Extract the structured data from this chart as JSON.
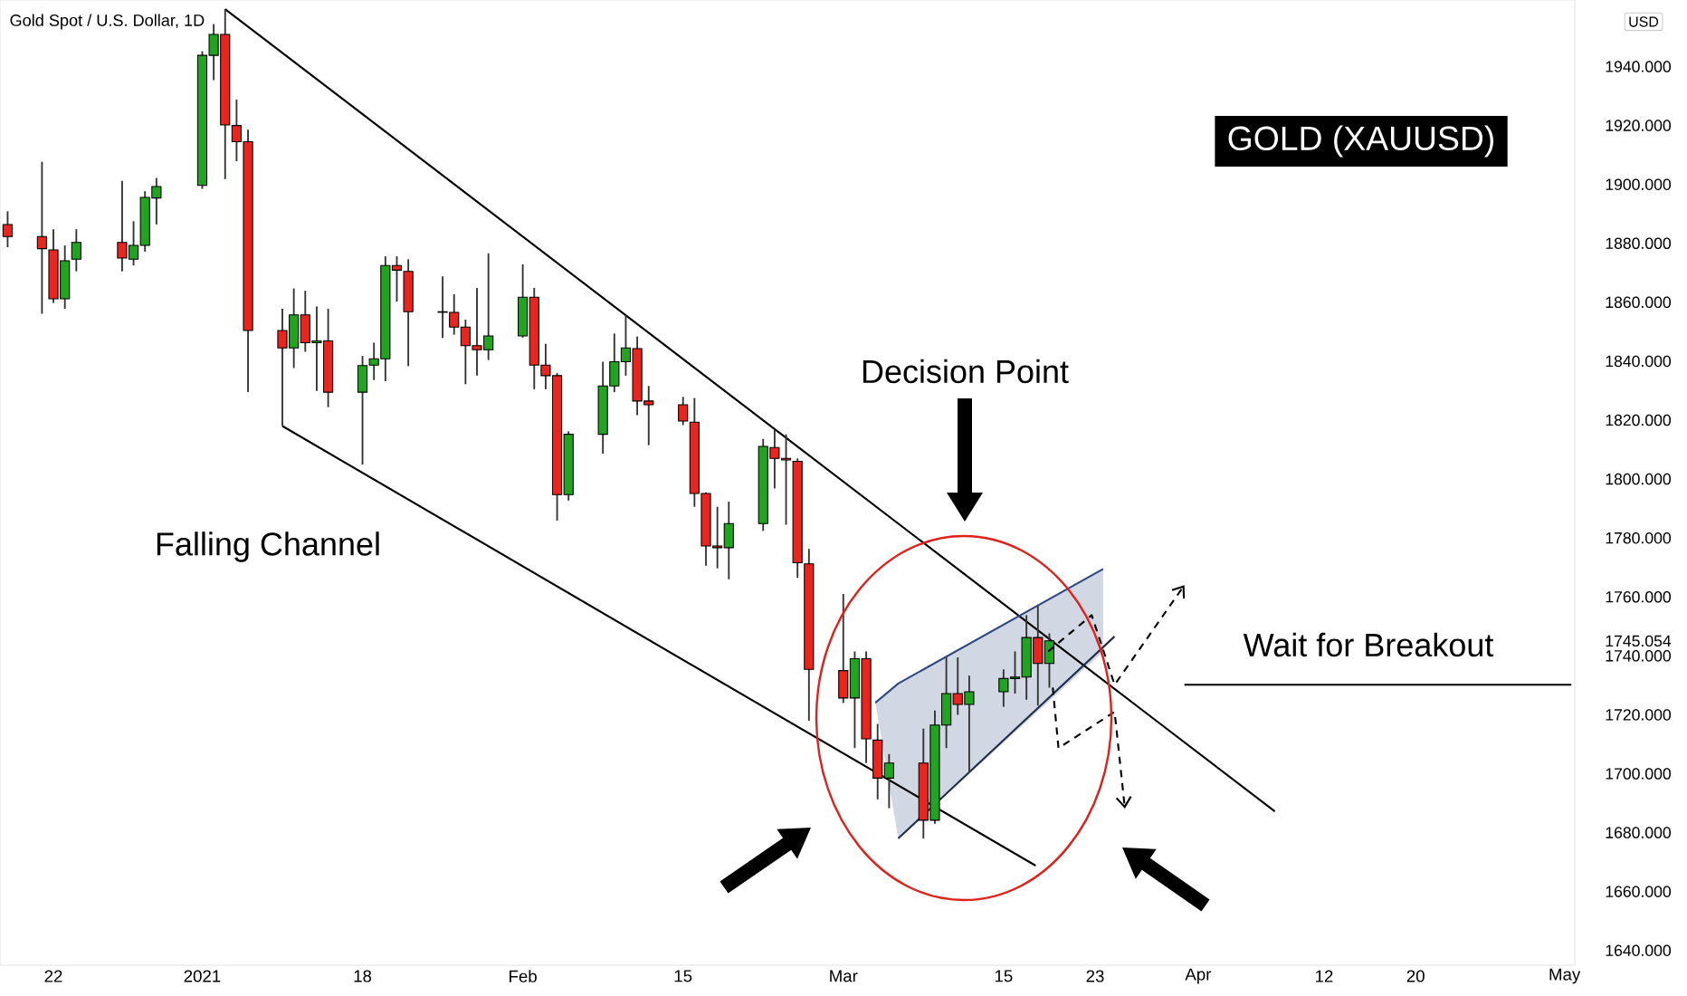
{
  "chart_data": {
    "type": "candlestick",
    "title": "Gold Spot / U.S. Dollar, 1D",
    "annotations": [
      "GOLD (XAUUSD)",
      "Decision Point",
      "Falling Channel",
      "Wait for Breakout",
      "USD"
    ],
    "x": [
      "2020-12-18",
      "2020-12-21",
      "2020-12-22",
      "2020-12-23",
      "2020-12-24",
      "2020-12-28",
      "2020-12-29",
      "2020-12-30",
      "2020-12-31",
      "2021-01-04",
      "2021-01-05",
      "2021-01-06",
      "2021-01-07",
      "2021-01-08",
      "2021-01-11",
      "2021-01-12",
      "2021-01-13",
      "2021-01-14",
      "2021-01-15",
      "2021-01-18",
      "2021-01-19",
      "2021-01-20",
      "2021-01-21",
      "2021-01-22",
      "2021-01-25",
      "2021-01-26",
      "2021-01-27",
      "2021-01-28",
      "2021-01-29",
      "2021-02-01",
      "2021-02-02",
      "2021-02-03",
      "2021-02-04",
      "2021-02-05",
      "2021-02-08",
      "2021-02-09",
      "2021-02-10",
      "2021-02-11",
      "2021-02-12",
      "2021-02-15",
      "2021-02-16",
      "2021-02-17",
      "2021-02-18",
      "2021-02-19",
      "2021-02-22",
      "2021-02-23",
      "2021-02-24",
      "2021-02-25",
      "2021-02-26",
      "2021-03-01",
      "2021-03-02",
      "2021-03-03",
      "2021-03-04",
      "2021-03-05",
      "2021-03-08",
      "2021-03-09",
      "2021-03-10",
      "2021-03-11",
      "2021-03-12",
      "2021-03-15",
      "2021-03-16",
      "2021-03-17",
      "2021-03-18",
      "2021-03-19"
    ],
    "ohlc": [
      [
        1886.4,
        1890.9,
        1878.7,
        1882.3
      ],
      [
        1882.3,
        1907.7,
        1856.1,
        1878.2
      ],
      [
        1877.8,
        1884.8,
        1859.8,
        1861.2
      ],
      [
        1861.2,
        1879.3,
        1857.8,
        1874.1
      ],
      [
        1874.6,
        1884.8,
        1870.5,
        1880.3
      ],
      [
        1880.3,
        1901.2,
        1870.5,
        1875.0
      ],
      [
        1874.6,
        1887.5,
        1872.5,
        1879.3
      ],
      [
        1879.3,
        1897.7,
        1877.2,
        1895.6
      ],
      [
        1895.4,
        1902.2,
        1886.4,
        1899.3
      ],
      [
        1899.7,
        1945.2,
        1898.5,
        1943.8
      ],
      [
        1943.8,
        1954.4,
        1935.4,
        1950.9
      ],
      [
        1950.9,
        1959.5,
        1901.8,
        1920.2
      ],
      [
        1920.0,
        1928.8,
        1907.9,
        1914.5
      ],
      [
        1914.5,
        1918.6,
        1829.5,
        1850.4
      ],
      [
        1850.4,
        1857.8,
        1818.0,
        1844.5
      ],
      [
        1844.5,
        1864.7,
        1837.7,
        1855.7
      ],
      [
        1855.7,
        1863.9,
        1843.2,
        1846.3
      ],
      [
        1846.3,
        1858.6,
        1829.9,
        1846.9
      ],
      [
        1846.9,
        1857.8,
        1824.4,
        1829.5
      ],
      [
        1829.5,
        1841.8,
        1804.9,
        1838.5
      ],
      [
        1838.7,
        1846.3,
        1833.6,
        1840.8
      ],
      [
        1840.8,
        1875.6,
        1833.2,
        1872.5
      ],
      [
        1872.5,
        1875.6,
        1860.2,
        1870.9
      ],
      [
        1870.5,
        1874.6,
        1838.3,
        1856.8
      ],
      [
        1856.8,
        1868.8,
        1847.9,
        1856.6
      ],
      [
        1856.6,
        1862.7,
        1849.0,
        1851.6
      ],
      [
        1851.6,
        1854.1,
        1832.2,
        1845.3
      ],
      [
        1845.3,
        1864.9,
        1835.1,
        1843.9
      ],
      [
        1843.9,
        1876.6,
        1840.4,
        1848.6
      ],
      [
        1848.6,
        1872.9,
        1848.0,
        1861.7
      ],
      [
        1861.7,
        1864.9,
        1830.5,
        1838.7
      ],
      [
        1838.7,
        1845.9,
        1830.5,
        1835.1
      ],
      [
        1835.1,
        1836.0,
        1785.9,
        1794.7
      ],
      [
        1794.7,
        1816.2,
        1792.7,
        1815.2
      ],
      [
        1815.2,
        1839.8,
        1808.6,
        1831.6
      ],
      [
        1831.6,
        1849.4,
        1829.5,
        1839.8
      ],
      [
        1839.8,
        1855.7,
        1835.1,
        1844.5
      ],
      [
        1844.3,
        1848.4,
        1821.7,
        1826.5
      ],
      [
        1826.5,
        1831.6,
        1811.5,
        1825.2
      ],
      [
        1825.2,
        1827.9,
        1818.3,
        1819.7
      ],
      [
        1819.3,
        1827.5,
        1790.6,
        1795.1
      ],
      [
        1795.1,
        1795.5,
        1770.6,
        1777.3
      ],
      [
        1777.3,
        1790.6,
        1769.7,
        1776.7
      ],
      [
        1776.7,
        1792.3,
        1766.0,
        1784.9
      ],
      [
        1784.9,
        1813.6,
        1782.4,
        1811.1
      ],
      [
        1810.7,
        1816.8,
        1796.8,
        1807.0
      ],
      [
        1807.0,
        1815.2,
        1784.5,
        1806.5
      ],
      [
        1806.0,
        1807.0,
        1766.5,
        1771.6
      ],
      [
        1771.2,
        1776.3,
        1718.0,
        1735.4
      ],
      [
        1735.0,
        1761.0,
        1724.0,
        1725.7
      ],
      [
        1725.7,
        1741.5,
        1708.7,
        1739.0
      ],
      [
        1739.0,
        1741.5,
        1703.6,
        1711.8
      ],
      [
        1711.4,
        1716.9,
        1691.3,
        1698.5
      ],
      [
        1698.5,
        1706.7,
        1688.3,
        1703.6
      ],
      [
        1703.6,
        1715.3,
        1678.0,
        1684.2
      ],
      [
        1684.2,
        1721.4,
        1683.0,
        1716.5
      ],
      [
        1716.5,
        1739.5,
        1708.7,
        1727.2
      ],
      [
        1727.2,
        1739.5,
        1720.0,
        1723.5
      ],
      [
        1723.5,
        1733.3,
        1700.5,
        1727.8
      ],
      [
        1727.8,
        1735.4,
        1722.7,
        1732.3
      ],
      [
        1732.3,
        1741.5,
        1727.2,
        1732.8
      ],
      [
        1732.8,
        1753.8,
        1725.1,
        1746.2
      ],
      [
        1746.2,
        1756.9,
        1723.1,
        1737.4
      ],
      [
        1737.4,
        1747.6,
        1729.2,
        1745.1
      ]
    ],
    "colors": [
      "#e8261f",
      "#e8261f",
      "#e8261f",
      "#22a321",
      "#22a321",
      "#e8261f",
      "#22a321",
      "#22a321",
      "#22a321",
      "#22a321",
      "#22a321",
      "#e8261f",
      "#e8261f",
      "#e8261f",
      "#e8261f",
      "#22a321",
      "#e8261f",
      "#22a321",
      "#e8261f",
      "#22a321",
      "#22a321",
      "#22a321",
      "#e8261f",
      "#e8261f",
      "#e8261f",
      "#e8261f",
      "#e8261f",
      "#e8261f",
      "#22a321",
      "#22a321",
      "#e8261f",
      "#e8261f",
      "#e8261f",
      "#22a321",
      "#22a321",
      "#22a321",
      "#22a321",
      "#e8261f",
      "#e8261f",
      "#e8261f",
      "#e8261f",
      "#e8261f",
      "#e8261f",
      "#22a321",
      "#22a321",
      "#e8261f",
      "#e8261f",
      "#e8261f",
      "#e8261f",
      "#e8261f",
      "#22a321",
      "#e8261f",
      "#e8261f",
      "#22a321",
      "#e8261f",
      "#22a321",
      "#22a321",
      "#e8261f",
      "#22a321",
      "#22a321",
      "#22a321",
      "#22a321",
      "#e8261f",
      "#22a321"
    ],
    "series": [
      {
        "type": "line",
        "color": "#000000",
        "x": [
          "2021-01-06",
          "2021-04-07T16:48"
        ],
        "values": [
          1959.5,
          1687.2
        ]
      },
      {
        "type": "line",
        "color": "#000000",
        "x": [
          "2021-01-11",
          "2021-03-17T19:12"
        ],
        "values": [
          1818.0,
          1668.8
        ]
      },
      {
        "type": "line",
        "color": "#2f4a80",
        "x": [
          "2021-03-03T19:12",
          "2021-03-05T19:12",
          "2021-03-23T16:48"
        ],
        "values": [
          1724.1,
          1730.6,
          1769.5
        ],
        "upper": [
          1724.1,
          1730.6,
          1769.5
        ],
        "lower": [
          1724.1,
          1678.0,
          1741.3
        ]
      },
      {
        "type": "line",
        "color": "#1f2d4a",
        "x": [
          "2021-03-05T19:12",
          "2021-03-24T16:48"
        ],
        "values": [
          1678.0,
          1746.6
        ]
      },
      {
        "type": "line",
        "color": "#000000",
        "x": [
          "2021-03-30T19:12",
          "2021-05-03T14:24"
        ],
        "values": [
          1730.2,
          1730.2
        ]
      }
    ],
    "xlim": [
      "2020-12-17T08:00",
      "2021-05-03T21:36"
    ],
    "xticks": [
      {
        "value": "2020-12-22",
        "label": "22"
      },
      {
        "value": "2021-01-04",
        "label": "2021"
      },
      {
        "value": "2021-01-18",
        "label": "18"
      },
      {
        "value": "2021-02-01",
        "label": "Feb"
      },
      {
        "value": "2021-02-15",
        "label": "15"
      },
      {
        "value": "2021-03-01",
        "label": "Mar"
      },
      {
        "value": "2021-03-15",
        "label": "15"
      },
      {
        "value": "2021-03-23",
        "label": "23"
      },
      {
        "value": "2021-04-01",
        "label": "Apr"
      },
      {
        "value": "2021-04-12",
        "label": "12"
      },
      {
        "value": "2021-04-20",
        "label": "20"
      },
      {
        "value": "2021-05-03",
        "label": "May"
      }
    ],
    "ylim": [
      1635,
      1962.6
    ],
    "yticks": [
      {
        "value": 1640,
        "label": "1640.000"
      },
      {
        "value": 1660,
        "label": "1660.000"
      },
      {
        "value": 1680,
        "label": "1680.000"
      },
      {
        "value": 1700,
        "label": "1700.000"
      },
      {
        "value": 1720,
        "label": "1720.000"
      },
      {
        "value": 1740,
        "label": "1740.000"
      },
      {
        "value": 1745.054,
        "label": "1745.054"
      },
      {
        "value": 1760,
        "label": "1760.000"
      },
      {
        "value": 1780,
        "label": "1780.000"
      },
      {
        "value": 1800,
        "label": "1800.000"
      },
      {
        "value": 1820,
        "label": "1820.000"
      },
      {
        "value": 1840,
        "label": "1840.000"
      },
      {
        "value": 1860,
        "label": "1860.000"
      },
      {
        "value": 1880,
        "label": "1880.000"
      },
      {
        "value": 1900,
        "label": "1900.000"
      },
      {
        "value": 1920,
        "label": "1920.000"
      },
      {
        "value": 1940,
        "label": "1940.000"
      }
    ]
  }
}
